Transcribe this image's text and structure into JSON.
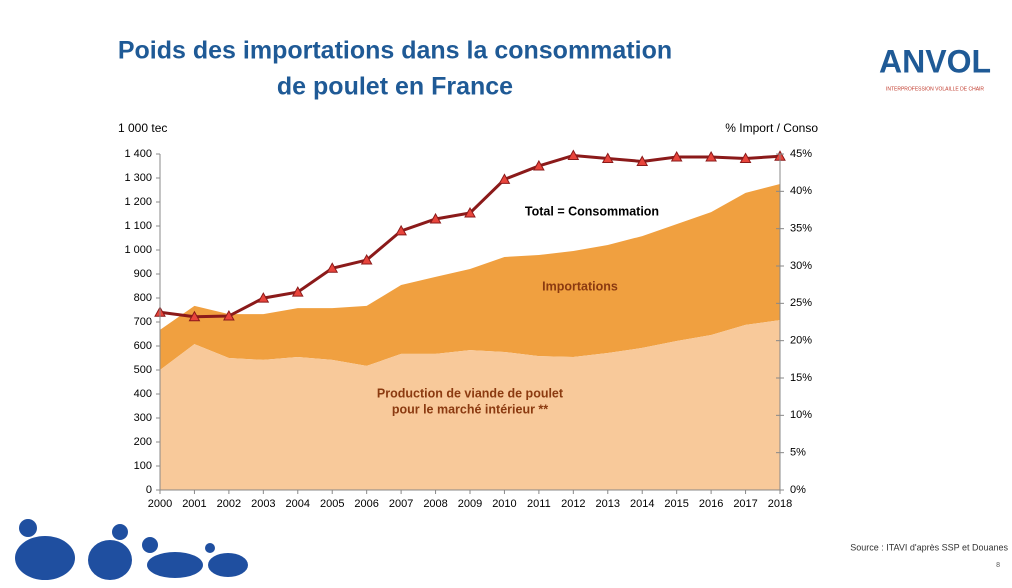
{
  "header": {
    "title_lines": [
      "Poids des importations dans la consommation",
      "de poulet en France"
    ],
    "logo": "ANVOL",
    "logo_subtitle": "INTERPROFESSION VOLAILLE DE CHAIR"
  },
  "footer": {
    "source": "Source : ITAVI  d'après SSP et Douanes",
    "page": "8"
  },
  "chart_data": {
    "type": "stacked-area-line",
    "ylabel": "1 000 tec",
    "y2label": "% Import / Conso",
    "categories": [
      "2000",
      "2001",
      "2002",
      "2003",
      "2004",
      "2005",
      "2006",
      "2007",
      "2008",
      "2009",
      "2010",
      "2011",
      "2012",
      "2013",
      "2014",
      "2015",
      "2016",
      "2017",
      "2018"
    ],
    "series": [
      {
        "name": [
          "Production de viande de poulet",
          "pour le marché intérieur **"
        ],
        "color": "#f8c99a",
        "values": [
          500,
          608,
          550,
          542,
          554,
          542,
          517,
          567,
          567,
          583,
          575,
          558,
          554,
          571,
          592,
          621,
          646,
          688,
          708
        ]
      },
      {
        "name": "Importations",
        "color": "#f0a040",
        "values": [
          167,
          159,
          183,
          191,
          204,
          216,
          250,
          287,
          321,
          338,
          396,
          421,
          442,
          450,
          466,
          487,
          512,
          550,
          567
        ]
      },
      {
        "name": "Total = Consommation",
        "color": "#8b1a1a",
        "marker_color": "#e8453c",
        "axis": "y2",
        "values": [
          23.8,
          23.2,
          23.3,
          25.7,
          26.5,
          29.7,
          30.8,
          34.7,
          36.3,
          37.1,
          41.6,
          43.4,
          44.8,
          44.4,
          44.0,
          44.6,
          44.6,
          44.4,
          44.7
        ]
      }
    ],
    "ylim": [
      0,
      1400
    ],
    "yticks": [
      0,
      100,
      200,
      300,
      400,
      500,
      600,
      700,
      800,
      900,
      {
        "value": 1000,
        "label": "1 000"
      },
      {
        "value": 1100,
        "label": "1 100"
      },
      {
        "value": 1200,
        "label": "1 200"
      },
      {
        "value": 1300,
        "label": "1 300"
      },
      {
        "value": 1400,
        "label": "1 400"
      }
    ],
    "y2lim": [
      0,
      45
    ],
    "y2ticks": [
      {
        "value": 0,
        "label": "0%"
      },
      {
        "value": 5,
        "label": "5%"
      },
      {
        "value": 10,
        "label": "10%"
      },
      {
        "value": 15,
        "label": "15%"
      },
      {
        "value": 20,
        "label": "20%"
      },
      {
        "value": 25,
        "label": "25%"
      },
      {
        "value": 30,
        "label": "30%"
      },
      {
        "value": 35,
        "label": "35%"
      },
      {
        "value": 40,
        "label": "40%"
      },
      {
        "value": 45,
        "label": "45%"
      }
    ],
    "grid": false
  }
}
